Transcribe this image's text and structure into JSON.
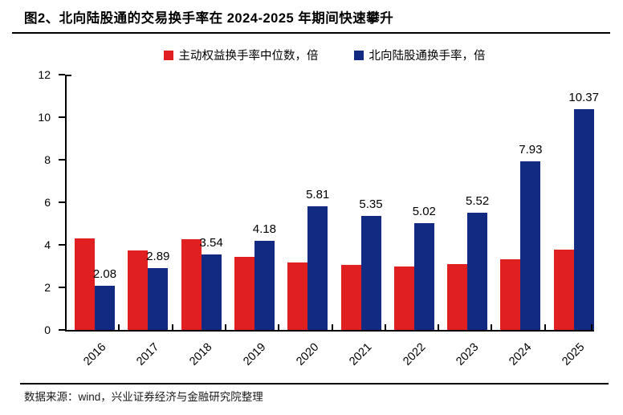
{
  "figure": {
    "title": "图2、北向陆股通的交易换手率在 2024-2025 年期间快速攀升",
    "source_note": "数据来源：wind，兴业证券经济与金融研究院整理"
  },
  "colors": {
    "red_series": "#e02020",
    "blue_series": "#122a82",
    "axis": "#000000"
  },
  "chart_data": {
    "type": "bar",
    "title": "图2、北向陆股通的交易换手率在 2024-2025 年期间快速攀升",
    "categories": [
      "2016",
      "2017",
      "2018",
      "2019",
      "2020",
      "2021",
      "2022",
      "2023",
      "2024",
      "2025"
    ],
    "series": [
      {
        "name": "主动权益换手率中位数，倍",
        "color": "#e02020",
        "values": [
          4.3,
          3.72,
          4.25,
          3.43,
          3.18,
          3.07,
          2.98,
          3.1,
          3.32,
          3.77
        ],
        "data_labels": null
      },
      {
        "name": "北向陆股通换手率，倍",
        "color": "#122a82",
        "values": [
          2.08,
          2.89,
          3.54,
          4.18,
          5.81,
          5.35,
          5.02,
          5.52,
          7.93,
          10.37
        ],
        "data_labels": [
          "2.08",
          "2.89",
          "3.54",
          "4.18",
          "5.81",
          "5.35",
          "5.02",
          "5.52",
          "7.93",
          "10.37"
        ]
      }
    ],
    "xlabel": "",
    "ylabel": "",
    "ylim": [
      0,
      12
    ],
    "yticks": [
      "0",
      "2",
      "4",
      "6",
      "8",
      "10",
      "12"
    ],
    "grid": false,
    "legend_position": "top-center",
    "x_tick_label_rotation_deg": -45
  }
}
